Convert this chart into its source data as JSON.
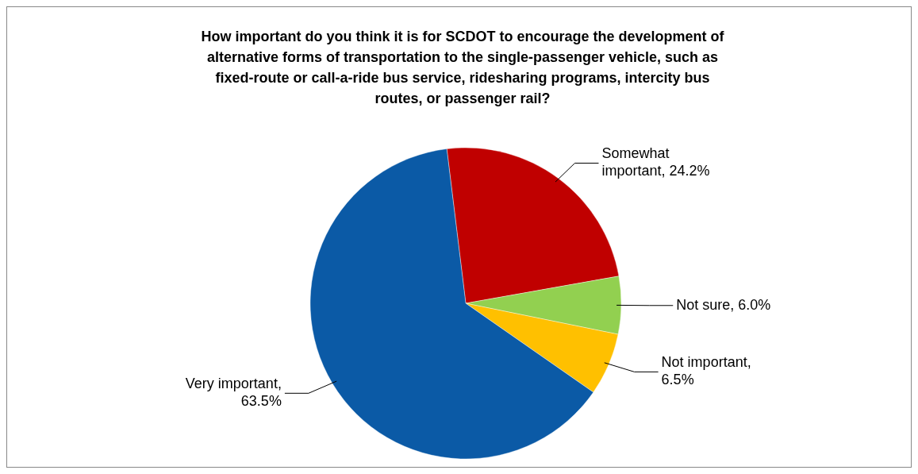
{
  "chart_data": {
    "type": "pie",
    "title": "How important do you think it is for SCDOT to encourage the development of alternative forms of transportation to the single-passenger vehicle, such as fixed-route or call-a-ride bus service, ridesharing programs, intercity bus routes, or passenger rail?",
    "categories": [
      "Somewhat important, 24.2%",
      "Not sure, 6.0%",
      "Not important, 6.5%",
      "Very important, 63.5%"
    ],
    "values": [
      24.2,
      6.0,
      6.5,
      63.5
    ],
    "colors": [
      "#c00000",
      "#92d050",
      "#ffc000",
      "#0b5aa6"
    ]
  }
}
